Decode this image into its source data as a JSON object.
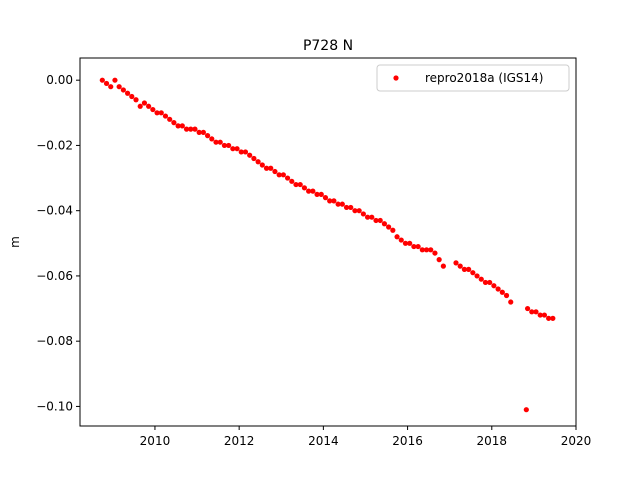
{
  "chart_data": {
    "type": "scatter",
    "title": "P728 N",
    "xlabel": "",
    "ylabel": "m",
    "xlim": [
      2008.22,
      2020.0
    ],
    "ylim": [
      -0.106,
      0.0068
    ],
    "xticks": [
      2010,
      2012,
      2014,
      2016,
      2018,
      2020
    ],
    "xtick_labels": [
      "2010",
      "2012",
      "2014",
      "2016",
      "2018",
      "2020"
    ],
    "yticks": [
      0.0,
      -0.02,
      -0.04,
      -0.06,
      -0.08,
      -0.1
    ],
    "ytick_labels": [
      "0.00",
      "−0.02",
      "−0.04",
      "−0.06",
      "−0.08",
      "−0.10"
    ],
    "grid": false,
    "legend_position": "top-right",
    "series": [
      {
        "name": "repro2018a (IGS14)",
        "color": "#ff0000",
        "marker": "circle",
        "points": [
          [
            2008.75,
            0.0
          ],
          [
            2008.85,
            -0.001
          ],
          [
            2008.95,
            -0.002
          ],
          [
            2009.05,
            0.0
          ],
          [
            2009.15,
            -0.002
          ],
          [
            2009.25,
            -0.003
          ],
          [
            2009.35,
            -0.004
          ],
          [
            2009.45,
            -0.005
          ],
          [
            2009.55,
            -0.006
          ],
          [
            2009.65,
            -0.008
          ],
          [
            2009.75,
            -0.007
          ],
          [
            2009.85,
            -0.008
          ],
          [
            2009.95,
            -0.009
          ],
          [
            2010.05,
            -0.01
          ],
          [
            2010.15,
            -0.01
          ],
          [
            2010.25,
            -0.011
          ],
          [
            2010.35,
            -0.012
          ],
          [
            2010.45,
            -0.013
          ],
          [
            2010.55,
            -0.014
          ],
          [
            2010.65,
            -0.014
          ],
          [
            2010.75,
            -0.015
          ],
          [
            2010.85,
            -0.015
          ],
          [
            2010.95,
            -0.015
          ],
          [
            2011.05,
            -0.016
          ],
          [
            2011.15,
            -0.016
          ],
          [
            2011.25,
            -0.017
          ],
          [
            2011.35,
            -0.018
          ],
          [
            2011.45,
            -0.019
          ],
          [
            2011.55,
            -0.019
          ],
          [
            2011.65,
            -0.02
          ],
          [
            2011.75,
            -0.02
          ],
          [
            2011.85,
            -0.021
          ],
          [
            2011.95,
            -0.021
          ],
          [
            2012.05,
            -0.022
          ],
          [
            2012.15,
            -0.022
          ],
          [
            2012.25,
            -0.023
          ],
          [
            2012.35,
            -0.024
          ],
          [
            2012.45,
            -0.025
          ],
          [
            2012.55,
            -0.026
          ],
          [
            2012.65,
            -0.027
          ],
          [
            2012.75,
            -0.027
          ],
          [
            2012.85,
            -0.028
          ],
          [
            2012.95,
            -0.029
          ],
          [
            2013.05,
            -0.029
          ],
          [
            2013.15,
            -0.03
          ],
          [
            2013.25,
            -0.031
          ],
          [
            2013.35,
            -0.032
          ],
          [
            2013.45,
            -0.032
          ],
          [
            2013.55,
            -0.033
          ],
          [
            2013.65,
            -0.034
          ],
          [
            2013.75,
            -0.034
          ],
          [
            2013.85,
            -0.035
          ],
          [
            2013.95,
            -0.035
          ],
          [
            2014.05,
            -0.036
          ],
          [
            2014.15,
            -0.037
          ],
          [
            2014.25,
            -0.037
          ],
          [
            2014.35,
            -0.038
          ],
          [
            2014.45,
            -0.038
          ],
          [
            2014.55,
            -0.039
          ],
          [
            2014.65,
            -0.039
          ],
          [
            2014.75,
            -0.04
          ],
          [
            2014.85,
            -0.04
          ],
          [
            2014.95,
            -0.041
          ],
          [
            2015.05,
            -0.042
          ],
          [
            2015.15,
            -0.042
          ],
          [
            2015.25,
            -0.043
          ],
          [
            2015.35,
            -0.043
          ],
          [
            2015.45,
            -0.044
          ],
          [
            2015.55,
            -0.045
          ],
          [
            2015.65,
            -0.046
          ],
          [
            2015.75,
            -0.048
          ],
          [
            2015.85,
            -0.049
          ],
          [
            2015.95,
            -0.05
          ],
          [
            2016.05,
            -0.05
          ],
          [
            2016.15,
            -0.051
          ],
          [
            2016.25,
            -0.051
          ],
          [
            2016.35,
            -0.052
          ],
          [
            2016.45,
            -0.052
          ],
          [
            2016.55,
            -0.052
          ],
          [
            2016.65,
            -0.053
          ],
          [
            2016.75,
            -0.055
          ],
          [
            2016.85,
            -0.057
          ],
          [
            2017.15,
            -0.056
          ],
          [
            2017.25,
            -0.057
          ],
          [
            2017.35,
            -0.058
          ],
          [
            2017.45,
            -0.058
          ],
          [
            2017.55,
            -0.059
          ],
          [
            2017.65,
            -0.06
          ],
          [
            2017.75,
            -0.061
          ],
          [
            2017.85,
            -0.062
          ],
          [
            2017.95,
            -0.062
          ],
          [
            2018.05,
            -0.063
          ],
          [
            2018.15,
            -0.064
          ],
          [
            2018.25,
            -0.065
          ],
          [
            2018.35,
            -0.066
          ],
          [
            2018.45,
            -0.068
          ],
          [
            2018.85,
            -0.07
          ],
          [
            2018.95,
            -0.071
          ],
          [
            2019.05,
            -0.071
          ],
          [
            2019.15,
            -0.072
          ],
          [
            2019.25,
            -0.072
          ],
          [
            2019.35,
            -0.073
          ],
          [
            2019.45,
            -0.073
          ],
          [
            2018.82,
            -0.101
          ]
        ]
      }
    ]
  }
}
